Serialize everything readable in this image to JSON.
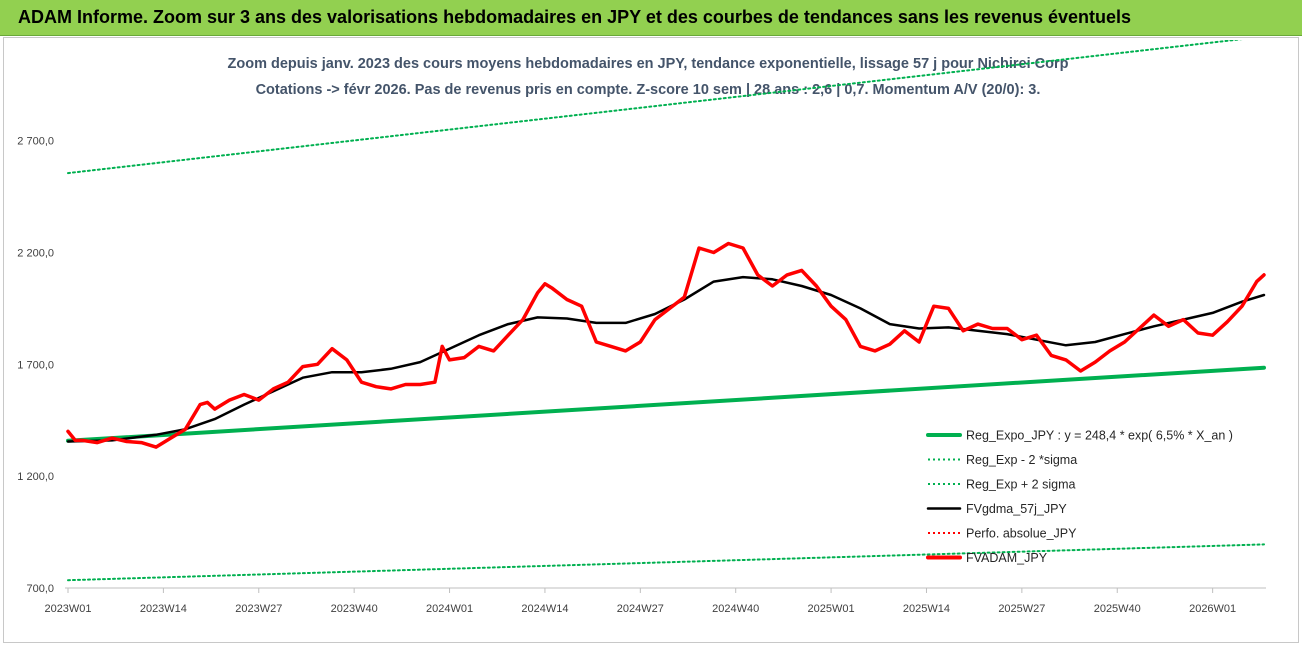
{
  "header": {
    "title": "ADAM Informe. Zoom sur 3 ans des valorisations hebdomadaires en JPY et des courbes de tendances sans les revenus éventuels"
  },
  "chart_data": {
    "type": "line",
    "title_line1": "Zoom depuis janv. 2023 des cours moyens hebdomadaires en JPY, tendance exponentielle, lissage 57 j pour Nichirei Corp",
    "title_line2": "Cotations -> févr 2026.  Pas de revenus pris en compte. Z-score 10 sem | 28 ans : 2,6 | 0,7. Momentum A/V (20/0): 3.",
    "x_ticks": [
      "2023W01",
      "2023W14",
      "2023W27",
      "2023W40",
      "2024W01",
      "2024W14",
      "2024W27",
      "2024W40",
      "2025W01",
      "2025W14",
      "2025W27",
      "2025W40",
      "2026W01"
    ],
    "y_ticks": [
      "700,0",
      "1 200,0",
      "1 700,0",
      "2 200,0",
      "2 700,0"
    ],
    "y_tick_values": [
      700,
      1200,
      1700,
      2200,
      2700
    ],
    "ylim": [
      700,
      3150
    ],
    "xlim_weeks": [
      0,
      163
    ],
    "grid": false,
    "legend_position": "right",
    "legend": [
      {
        "label": "Reg_Expo_JPY : y = 248,4 * exp( 6,5% *  X_an )",
        "color": "#00b050",
        "style": "solid-thick"
      },
      {
        "label": "Reg_Exp - 2 *sigma",
        "color": "#00b050",
        "style": "dotted"
      },
      {
        "label": "Reg_Exp + 2 sigma",
        "color": "#00b050",
        "style": "dotted"
      },
      {
        "label": "FVgdma_57j_JPY",
        "color": "#000000",
        "style": "solid"
      },
      {
        "label": "Perfo. absolue_JPY",
        "color": "#ff0000",
        "style": "dotted"
      },
      {
        "label": "FVADAM_JPY",
        "color": "#ff0000",
        "style": "solid-thick"
      }
    ],
    "series": [
      {
        "name": "Reg_Expo_JPY : y = 248,4 * exp( 6,5% *  X_an )",
        "x_weeks": [
          0,
          163
        ],
        "values": [
          1358,
          1685
        ]
      },
      {
        "name": "Reg_Exp - 2 *sigma",
        "x_weeks": [
          0,
          163
        ],
        "values": [
          735,
          895
        ]
      },
      {
        "name": "Reg_Exp + 2 sigma",
        "x_weeks": [
          0,
          163
        ],
        "values": [
          2555,
          3165
        ]
      },
      {
        "name": "FVgdma_57j_JPY",
        "x_weeks": [
          0,
          6,
          12,
          16,
          20,
          24,
          28,
          32,
          36,
          40,
          44,
          48,
          52,
          56,
          60,
          64,
          68,
          72,
          76,
          80,
          84,
          88,
          92,
          96,
          100,
          104,
          108,
          112,
          116,
          120,
          124,
          128,
          132,
          136,
          140,
          144,
          148,
          152,
          156,
          160,
          163
        ],
        "values": [
          1355,
          1360,
          1385,
          1410,
          1455,
          1520,
          1580,
          1640,
          1665,
          1665,
          1680,
          1710,
          1770,
          1830,
          1880,
          1910,
          1905,
          1885,
          1885,
          1925,
          1990,
          2070,
          2090,
          2080,
          2050,
          2010,
          1950,
          1880,
          1860,
          1865,
          1850,
          1835,
          1810,
          1785,
          1800,
          1835,
          1870,
          1900,
          1930,
          1980,
          2010
        ]
      },
      {
        "name": "FVADAM_JPY",
        "x_weeks": [
          0,
          1,
          2,
          4,
          6,
          8,
          10,
          12,
          14,
          16,
          18,
          19,
          20,
          22,
          24,
          26,
          28,
          30,
          32,
          34,
          36,
          38,
          40,
          42,
          44,
          46,
          48,
          50,
          51,
          52,
          54,
          56,
          58,
          60,
          62,
          64,
          65,
          66,
          68,
          70,
          72,
          74,
          76,
          78,
          80,
          82,
          84,
          86,
          88,
          90,
          92,
          94,
          96,
          98,
          100,
          102,
          104,
          106,
          108,
          110,
          112,
          114,
          116,
          118,
          120,
          122,
          124,
          126,
          128,
          130,
          132,
          134,
          136,
          138,
          140,
          142,
          144,
          146,
          148,
          150,
          152,
          154,
          156,
          158,
          160,
          162,
          163
        ],
        "values": [
          1400,
          1360,
          1360,
          1350,
          1370,
          1355,
          1350,
          1330,
          1370,
          1410,
          1520,
          1530,
          1500,
          1540,
          1565,
          1540,
          1590,
          1620,
          1690,
          1700,
          1770,
          1720,
          1620,
          1600,
          1590,
          1610,
          1610,
          1620,
          1780,
          1720,
          1730,
          1780,
          1760,
          1830,
          1900,
          2020,
          2060,
          2040,
          1990,
          1960,
          1800,
          1780,
          1760,
          1800,
          1900,
          1950,
          2000,
          2220,
          2200,
          2240,
          2220,
          2100,
          2050,
          2100,
          2120,
          2050,
          1960,
          1900,
          1780,
          1760,
          1790,
          1850,
          1800,
          1960,
          1950,
          1850,
          1880,
          1860,
          1860,
          1810,
          1830,
          1740,
          1720,
          1670,
          1710,
          1760,
          1800,
          1860,
          1920,
          1870,
          1900,
          1840,
          1830,
          1890,
          1960,
          2070,
          2100
        ]
      }
    ]
  }
}
